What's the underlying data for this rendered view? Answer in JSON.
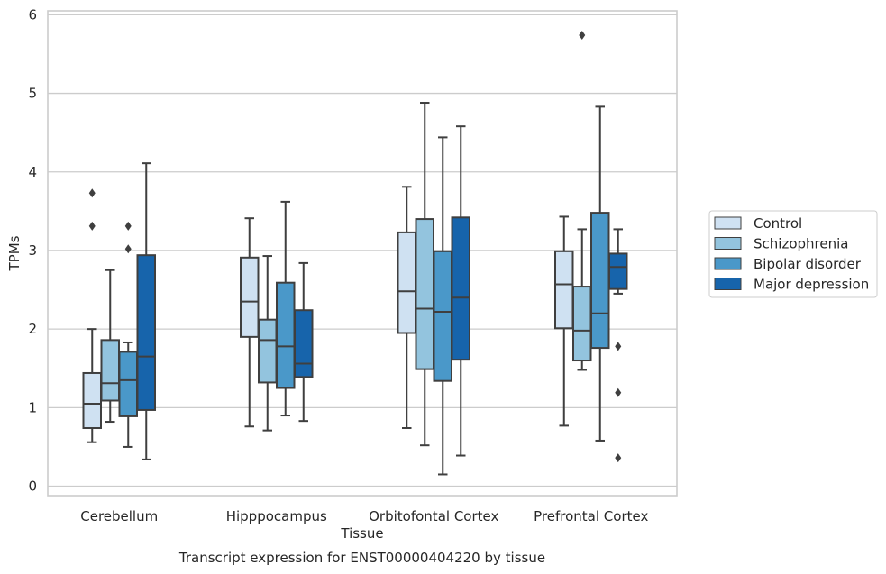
{
  "chart_data": {
    "type": "box",
    "xlabel": "Tissue",
    "ylabel": "TPMs",
    "caption": "Transcript expression for ENST00000404220 by tissue",
    "ylim": [
      -0.12,
      6.05
    ],
    "yticks": [
      0,
      1,
      2,
      3,
      4,
      5,
      6
    ],
    "grid": "horizontal",
    "legend_position": "right",
    "categories": [
      "Cerebellum",
      "Hipppocampus",
      "Orbitofontal Cortex",
      "Prefrontal Cortex"
    ],
    "series": [
      {
        "name": "Control",
        "color": "#cfe1f2",
        "boxes": [
          {
            "whisker_low": 0.56,
            "q1": 0.74,
            "median": 1.05,
            "q3": 1.44,
            "whisker_high": 2.0,
            "outliers": [
              3.31,
              3.73
            ]
          },
          {
            "whisker_low": 0.76,
            "q1": 1.9,
            "median": 2.35,
            "q3": 2.91,
            "whisker_high": 3.41,
            "outliers": []
          },
          {
            "whisker_low": 0.74,
            "q1": 1.95,
            "median": 2.48,
            "q3": 3.23,
            "whisker_high": 3.81,
            "outliers": []
          },
          {
            "whisker_low": 0.77,
            "q1": 2.01,
            "median": 2.57,
            "q3": 2.99,
            "whisker_high": 3.43,
            "outliers": []
          }
        ]
      },
      {
        "name": "Schizophrenia",
        "color": "#93c4de",
        "boxes": [
          {
            "whisker_low": 0.82,
            "q1": 1.09,
            "median": 1.31,
            "q3": 1.86,
            "whisker_high": 2.75,
            "outliers": []
          },
          {
            "whisker_low": 0.71,
            "q1": 1.32,
            "median": 1.86,
            "q3": 2.12,
            "whisker_high": 2.93,
            "outliers": []
          },
          {
            "whisker_low": 0.52,
            "q1": 1.49,
            "median": 2.26,
            "q3": 3.4,
            "whisker_high": 4.88,
            "outliers": []
          },
          {
            "whisker_low": 1.48,
            "q1": 1.6,
            "median": 1.98,
            "q3": 2.54,
            "whisker_high": 3.27,
            "outliers": [
              5.74
            ]
          }
        ]
      },
      {
        "name": "Bipolar disorder",
        "color": "#4a98c9",
        "boxes": [
          {
            "whisker_low": 0.5,
            "q1": 0.89,
            "median": 1.35,
            "q3": 1.71,
            "whisker_high": 1.83,
            "outliers": [
              3.02,
              3.31
            ]
          },
          {
            "whisker_low": 0.9,
            "q1": 1.25,
            "median": 1.78,
            "q3": 2.59,
            "whisker_high": 3.62,
            "outliers": []
          },
          {
            "whisker_low": 0.15,
            "q1": 1.34,
            "median": 2.22,
            "q3": 2.99,
            "whisker_high": 4.44,
            "outliers": []
          },
          {
            "whisker_low": 0.58,
            "q1": 1.76,
            "median": 2.2,
            "q3": 3.48,
            "whisker_high": 4.83,
            "outliers": []
          }
        ]
      },
      {
        "name": "Major depression",
        "color": "#1764ab",
        "boxes": [
          {
            "whisker_low": 0.34,
            "q1": 0.97,
            "median": 1.65,
            "q3": 2.94,
            "whisker_high": 4.11,
            "outliers": []
          },
          {
            "whisker_low": 0.83,
            "q1": 1.39,
            "median": 1.56,
            "q3": 2.24,
            "whisker_high": 2.84,
            "outliers": []
          },
          {
            "whisker_low": 0.39,
            "q1": 1.61,
            "median": 2.4,
            "q3": 3.42,
            "whisker_high": 4.58,
            "outliers": []
          },
          {
            "whisker_low": 2.45,
            "q1": 2.51,
            "median": 2.79,
            "q3": 2.96,
            "whisker_high": 3.27,
            "outliers": [
              0.36,
              1.19,
              1.78
            ]
          }
        ]
      }
    ]
  }
}
